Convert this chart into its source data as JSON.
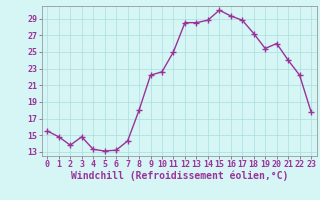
{
  "x": [
    0,
    1,
    2,
    3,
    4,
    5,
    6,
    7,
    8,
    9,
    10,
    11,
    12,
    13,
    14,
    15,
    16,
    17,
    18,
    19,
    20,
    21,
    22,
    23
  ],
  "y": [
    15.5,
    14.8,
    13.8,
    14.8,
    13.3,
    13.1,
    13.2,
    14.3,
    18.0,
    22.2,
    22.6,
    25.0,
    28.5,
    28.5,
    28.8,
    30.0,
    29.3,
    28.8,
    27.2,
    25.4,
    26.0,
    24.0,
    22.2,
    17.8
  ],
  "line_color": "#993399",
  "marker": "+",
  "marker_size": 4,
  "bg_color": "#d6f5f5",
  "grid_color": "#aadddd",
  "xlabel": "Windchill (Refroidissement éolien,°C)",
  "xlabel_color": "#993399",
  "tick_color": "#993399",
  "ylim": [
    12.5,
    30.5
  ],
  "yticks": [
    13,
    15,
    17,
    19,
    21,
    23,
    25,
    27,
    29
  ],
  "xlim": [
    -0.5,
    23.5
  ],
  "xticks": [
    0,
    1,
    2,
    3,
    4,
    5,
    6,
    7,
    8,
    9,
    10,
    11,
    12,
    13,
    14,
    15,
    16,
    17,
    18,
    19,
    20,
    21,
    22,
    23
  ],
  "tick_fontsize": 6.0,
  "xlabel_fontsize": 7.0,
  "linewidth": 1.0
}
